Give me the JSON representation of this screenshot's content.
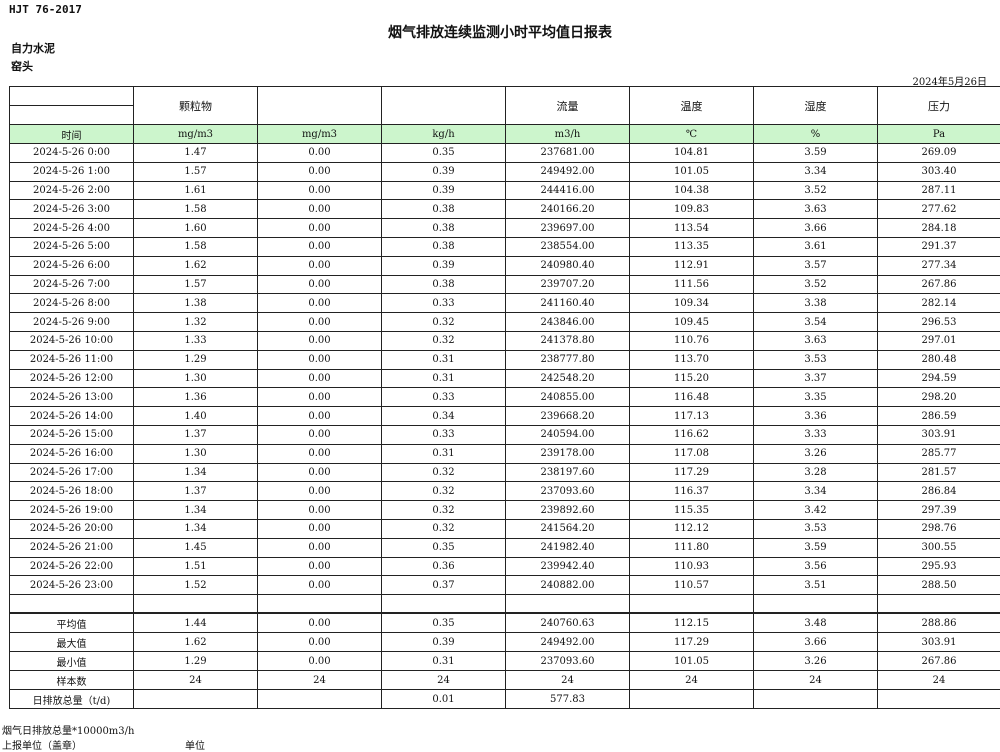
{
  "header": {
    "standard": "HJT  76-2017",
    "title": "烟气排放连续监测小时平均值日报表",
    "company": "自力水泥",
    "location": "窑头",
    "date": "2024年5月26日"
  },
  "table": {
    "column_headers": [
      "",
      "颗粒物",
      "",
      "",
      "流量",
      "温度",
      "湿度",
      "压力"
    ],
    "units": [
      "时间",
      "mg/m3",
      "mg/m3",
      "kg/h",
      "m3/h",
      "℃",
      "%",
      "Pa"
    ],
    "rows": [
      [
        "2024-5-26 0:00",
        "1.47",
        "0.00",
        "0.35",
        "237681.00",
        "104.81",
        "3.59",
        "269.09"
      ],
      [
        "2024-5-26 1:00",
        "1.57",
        "0.00",
        "0.39",
        "249492.00",
        "101.05",
        "3.34",
        "303.40"
      ],
      [
        "2024-5-26 2:00",
        "1.61",
        "0.00",
        "0.39",
        "244416.00",
        "104.38",
        "3.52",
        "287.11"
      ],
      [
        "2024-5-26 3:00",
        "1.58",
        "0.00",
        "0.38",
        "240166.20",
        "109.83",
        "3.63",
        "277.62"
      ],
      [
        "2024-5-26 4:00",
        "1.60",
        "0.00",
        "0.38",
        "239697.00",
        "113.54",
        "3.66",
        "284.18"
      ],
      [
        "2024-5-26 5:00",
        "1.58",
        "0.00",
        "0.38",
        "238554.00",
        "113.35",
        "3.61",
        "291.37"
      ],
      [
        "2024-5-26 6:00",
        "1.62",
        "0.00",
        "0.39",
        "240980.40",
        "112.91",
        "3.57",
        "277.34"
      ],
      [
        "2024-5-26 7:00",
        "1.57",
        "0.00",
        "0.38",
        "239707.20",
        "111.56",
        "3.52",
        "267.86"
      ],
      [
        "2024-5-26 8:00",
        "1.38",
        "0.00",
        "0.33",
        "241160.40",
        "109.34",
        "3.38",
        "282.14"
      ],
      [
        "2024-5-26 9:00",
        "1.32",
        "0.00",
        "0.32",
        "243846.00",
        "109.45",
        "3.54",
        "296.53"
      ],
      [
        "2024-5-26 10:00",
        "1.33",
        "0.00",
        "0.32",
        "241378.80",
        "110.76",
        "3.63",
        "297.01"
      ],
      [
        "2024-5-26 11:00",
        "1.29",
        "0.00",
        "0.31",
        "238777.80",
        "113.70",
        "3.53",
        "280.48"
      ],
      [
        "2024-5-26 12:00",
        "1.30",
        "0.00",
        "0.31",
        "242548.20",
        "115.20",
        "3.37",
        "294.59"
      ],
      [
        "2024-5-26 13:00",
        "1.36",
        "0.00",
        "0.33",
        "240855.00",
        "116.48",
        "3.35",
        "298.20"
      ],
      [
        "2024-5-26 14:00",
        "1.40",
        "0.00",
        "0.34",
        "239668.20",
        "117.13",
        "3.36",
        "286.59"
      ],
      [
        "2024-5-26 15:00",
        "1.37",
        "0.00",
        "0.33",
        "240594.00",
        "116.62",
        "3.33",
        "303.91"
      ],
      [
        "2024-5-26 16:00",
        "1.30",
        "0.00",
        "0.31",
        "239178.00",
        "117.08",
        "3.26",
        "285.77"
      ],
      [
        "2024-5-26 17:00",
        "1.34",
        "0.00",
        "0.32",
        "238197.60",
        "117.29",
        "3.28",
        "281.57"
      ],
      [
        "2024-5-26 18:00",
        "1.37",
        "0.00",
        "0.32",
        "237093.60",
        "116.37",
        "3.34",
        "286.84"
      ],
      [
        "2024-5-26 19:00",
        "1.34",
        "0.00",
        "0.32",
        "239892.60",
        "115.35",
        "3.42",
        "297.39"
      ],
      [
        "2024-5-26 20:00",
        "1.34",
        "0.00",
        "0.32",
        "241564.20",
        "112.12",
        "3.53",
        "298.76"
      ],
      [
        "2024-5-26 21:00",
        "1.45",
        "0.00",
        "0.35",
        "241982.40",
        "111.80",
        "3.59",
        "300.55"
      ],
      [
        "2024-5-26 22:00",
        "1.51",
        "0.00",
        "0.36",
        "239942.40",
        "110.93",
        "3.56",
        "295.93"
      ],
      [
        "2024-5-26 23:00",
        "1.52",
        "0.00",
        "0.37",
        "240882.00",
        "110.57",
        "3.51",
        "288.50"
      ]
    ],
    "summary": [
      [
        "平均值",
        "1.44",
        "0.00",
        "0.35",
        "240760.63",
        "112.15",
        "3.48",
        "288.86"
      ],
      [
        "最大值",
        "1.62",
        "0.00",
        "0.39",
        "249492.00",
        "117.29",
        "3.66",
        "303.91"
      ],
      [
        "最小值",
        "1.29",
        "0.00",
        "0.31",
        "237093.60",
        "101.05",
        "3.26",
        "267.86"
      ],
      [
        "样本数",
        "24",
        "24",
        "24",
        "24",
        "24",
        "24",
        "24"
      ],
      [
        "日排放总量（t/d)",
        "",
        "",
        "0.01",
        "577.83",
        "",
        "",
        ""
      ]
    ]
  },
  "footer": {
    "note": "烟气日排放总量*10000m3/h",
    "reporter_label": "上报单位（盖章）",
    "unit_label": "单位"
  }
}
